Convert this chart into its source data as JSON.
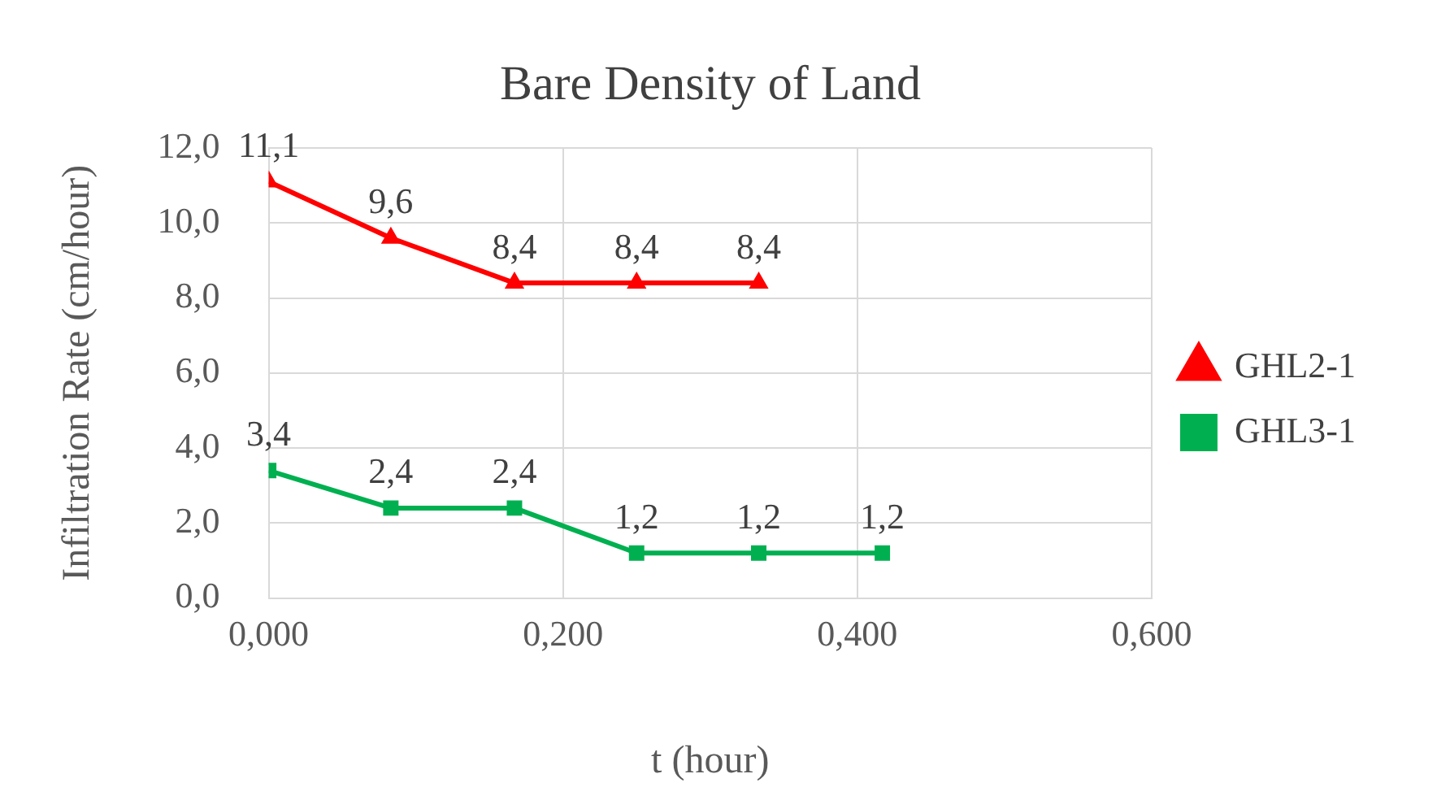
{
  "chart_data": {
    "type": "line",
    "title": "Bare Density of Land",
    "xlabel": "t (hour)",
    "ylabel": "Infiltration Rate (cm/hour)",
    "xlim": [
      0,
      0.6
    ],
    "xticks": [
      {
        "value": 0,
        "label": "0,000"
      },
      {
        "value": 0.2,
        "label": "0,200"
      },
      {
        "value": 0.4,
        "label": "0,400"
      },
      {
        "value": 0.6,
        "label": "0,600"
      }
    ],
    "ylim": [
      0,
      12
    ],
    "yticks": [
      {
        "value": 0,
        "label": "0,0"
      },
      {
        "value": 2,
        "label": "2,0"
      },
      {
        "value": 4,
        "label": "4,0"
      },
      {
        "value": 6,
        "label": "6,0"
      },
      {
        "value": 8,
        "label": "8,0"
      },
      {
        "value": 10,
        "label": "10,0"
      },
      {
        "value": 12,
        "label": "12,0"
      }
    ],
    "grid": true,
    "legend": "right",
    "line_style": "solid",
    "series": [
      {
        "name": "GHL2-1",
        "color": "#ff0000",
        "marker": "triangle",
        "x": [
          0,
          0.083,
          0.167,
          0.25,
          0.333
        ],
        "values": [
          11.1,
          9.6,
          8.4,
          8.4,
          8.4
        ],
        "value_labels": [
          "11,1",
          "9,6",
          "8,4",
          "8,4",
          "8,4"
        ]
      },
      {
        "name": "GHL3-1",
        "color": "#00b050",
        "marker": "square",
        "x": [
          0,
          0.083,
          0.167,
          0.25,
          0.333,
          0.417
        ],
        "values": [
          3.4,
          2.4,
          2.4,
          1.2,
          1.2,
          1.2
        ],
        "value_labels": [
          "3,4",
          "2,4",
          "2,4",
          "1,2",
          "1,2",
          "1,2"
        ]
      }
    ]
  }
}
